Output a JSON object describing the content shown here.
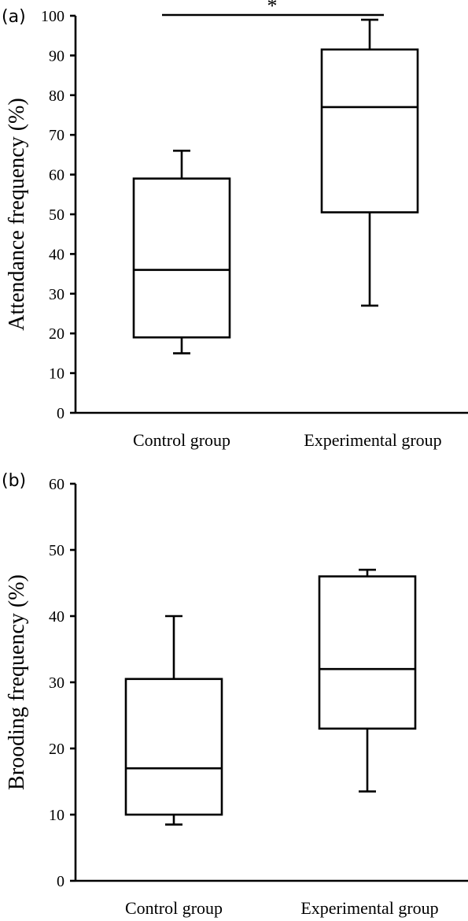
{
  "chart_data": [
    {
      "type": "box",
      "panel_label": "(a)",
      "ylabel": "Attendance frequency (%)",
      "xlabel": "",
      "ylim": [
        0,
        100
      ],
      "yticks": [
        0,
        10,
        20,
        30,
        40,
        50,
        60,
        70,
        80,
        90,
        100
      ],
      "categories": [
        "Control group",
        "Experimental group"
      ],
      "boxes": [
        {
          "category": "Control group",
          "min": 15,
          "q1": 19,
          "median": 36,
          "q3": 59,
          "max": 66
        },
        {
          "category": "Experimental group",
          "min": 27,
          "q1": 50.5,
          "median": 77,
          "q3": 91.5,
          "max": 99
        }
      ],
      "significance": {
        "from": "Control group",
        "to": "Experimental group",
        "marker": "*"
      },
      "grid": false
    },
    {
      "type": "box",
      "panel_label": "(b)",
      "ylabel": "Brooding frequency (%)",
      "xlabel": "",
      "ylim": [
        0,
        60
      ],
      "yticks": [
        0,
        10,
        20,
        30,
        40,
        50,
        60
      ],
      "categories": [
        "Control group",
        "Experimental group"
      ],
      "boxes": [
        {
          "category": "Control group",
          "min": 8.5,
          "q1": 10,
          "median": 17,
          "q3": 30.5,
          "max": 40
        },
        {
          "category": "Experimental group",
          "min": 13.5,
          "q1": 23,
          "median": 32,
          "q3": 46,
          "max": 47
        }
      ],
      "grid": false
    }
  ]
}
